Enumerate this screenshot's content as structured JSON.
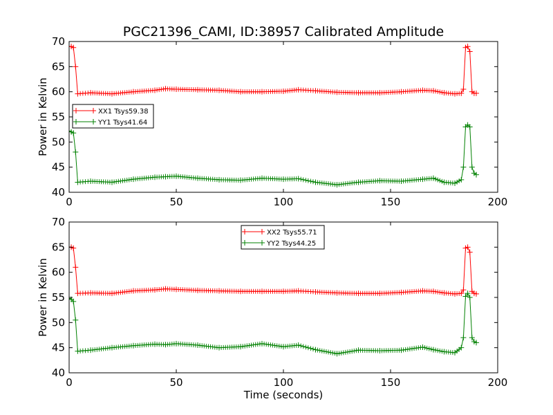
{
  "chart_data": [
    {
      "type": "line",
      "title": "PGC21396_CAMI, ID:38957 Calibrated Amplitude",
      "xlabel": "",
      "ylabel": "Power in Kelvin",
      "xlim": [
        0,
        200
      ],
      "ylim": [
        40,
        70
      ],
      "xticks": [
        "0",
        "50",
        "100",
        "150",
        "200"
      ],
      "yticks": [
        "40",
        "45",
        "50",
        "55",
        "60",
        "65",
        "70"
      ],
      "legend_position": "center-left",
      "grid": false,
      "series": [
        {
          "name": "XX1 Tsys59.38",
          "color": "#ff0000",
          "marker": "+",
          "x": [
            0,
            1,
            2,
            3,
            4,
            10,
            20,
            30,
            40,
            45,
            50,
            60,
            70,
            80,
            90,
            100,
            107,
            115,
            125,
            135,
            145,
            155,
            165,
            170,
            175,
            180,
            183,
            184,
            185,
            186,
            187,
            188,
            189,
            190
          ],
          "y": [
            69,
            69,
            68.8,
            65,
            59.6,
            59.8,
            59.6,
            60.0,
            60.3,
            60.6,
            60.5,
            60.4,
            60.3,
            60.0,
            60.0,
            60.1,
            60.4,
            60.2,
            59.9,
            59.8,
            59.8,
            60.0,
            60.3,
            60.2,
            59.8,
            59.6,
            59.7,
            60.5,
            68.8,
            69.0,
            68.0,
            60.0,
            59.7,
            59.7
          ]
        },
        {
          "name": "YY1 Tsys41.64",
          "color": "#008000",
          "marker": "+",
          "x": [
            0,
            1,
            2,
            3,
            4,
            10,
            20,
            30,
            40,
            45,
            50,
            60,
            70,
            80,
            90,
            100,
            107,
            115,
            125,
            135,
            145,
            155,
            165,
            170,
            175,
            180,
            183,
            184,
            185,
            186,
            187,
            188,
            189,
            190
          ],
          "y": [
            52.2,
            52.0,
            51.8,
            48.0,
            42.0,
            42.2,
            42.0,
            42.6,
            43.0,
            43.1,
            43.2,
            42.8,
            42.5,
            42.4,
            42.8,
            42.6,
            42.7,
            42.0,
            41.5,
            42.0,
            42.3,
            42.2,
            42.6,
            42.8,
            42.0,
            41.8,
            42.5,
            45.0,
            53.0,
            53.4,
            53.0,
            45.0,
            43.8,
            43.5
          ]
        }
      ]
    },
    {
      "type": "line",
      "title": "",
      "xlabel": "Time (seconds)",
      "ylabel": "Power in Kelvin",
      "xlim": [
        0,
        200
      ],
      "ylim": [
        40,
        70
      ],
      "xticks": [
        "0",
        "50",
        "100",
        "150",
        "200"
      ],
      "yticks": [
        "40",
        "45",
        "50",
        "55",
        "60",
        "65",
        "70"
      ],
      "legend_position": "upper-center",
      "grid": false,
      "series": [
        {
          "name": "XX2 Tsys55.71",
          "color": "#ff0000",
          "marker": "+",
          "x": [
            0,
            1,
            2,
            3,
            4,
            10,
            20,
            30,
            40,
            45,
            50,
            60,
            70,
            80,
            90,
            100,
            107,
            115,
            125,
            135,
            145,
            155,
            165,
            170,
            175,
            180,
            183,
            184,
            185,
            186,
            187,
            188,
            189,
            190
          ],
          "y": [
            65.0,
            65.0,
            64.8,
            61.0,
            55.8,
            55.9,
            55.8,
            56.3,
            56.5,
            56.7,
            56.6,
            56.4,
            56.3,
            56.2,
            56.2,
            56.2,
            56.3,
            56.1,
            55.9,
            55.8,
            55.8,
            56.0,
            56.3,
            56.2,
            55.9,
            55.7,
            55.8,
            56.5,
            64.8,
            65.0,
            64.0,
            56.2,
            55.8,
            55.7
          ]
        },
        {
          "name": "YY2 Tsys44.25",
          "color": "#008000",
          "marker": "+",
          "x": [
            0,
            1,
            2,
            3,
            4,
            10,
            20,
            30,
            40,
            45,
            50,
            60,
            70,
            80,
            90,
            100,
            107,
            115,
            125,
            135,
            145,
            155,
            165,
            170,
            175,
            180,
            183,
            184,
            185,
            186,
            187,
            188,
            189,
            190
          ],
          "y": [
            54.8,
            54.6,
            54.2,
            50.5,
            44.3,
            44.5,
            45.0,
            45.4,
            45.7,
            45.6,
            45.8,
            45.5,
            45.0,
            45.2,
            45.8,
            45.2,
            45.5,
            44.6,
            43.8,
            44.5,
            44.4,
            44.5,
            45.1,
            44.6,
            44.2,
            44.0,
            45.0,
            47.0,
            55.2,
            55.8,
            55.0,
            47.0,
            46.2,
            46.0
          ]
        }
      ]
    }
  ]
}
